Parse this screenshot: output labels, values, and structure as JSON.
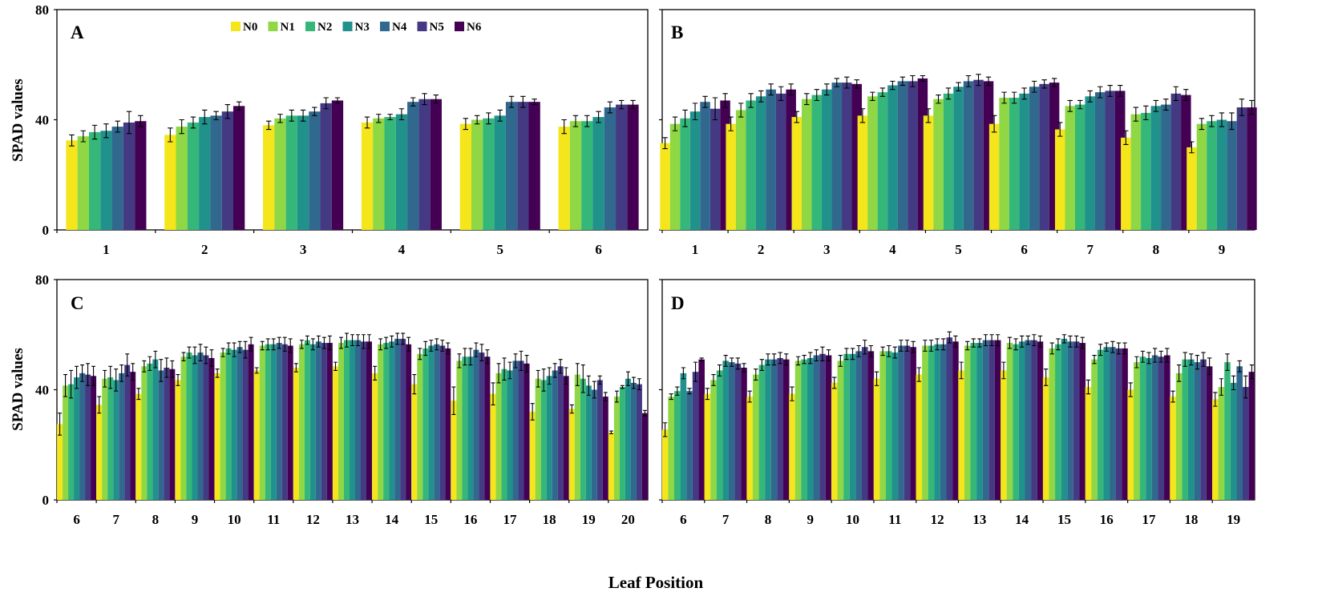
{
  "figure": {
    "ylabel": "SPAD values",
    "xlabel": "Leaf Position"
  },
  "legend": {
    "items": [
      "N0",
      "N1",
      "N2",
      "N3",
      "N4",
      "N5",
      "N6"
    ]
  },
  "colors": {
    "N0": "#f5e51b",
    "N1": "#8fd744",
    "N2": "#35b779",
    "N3": "#21918c",
    "N4": "#31688e",
    "N5": "#443983",
    "N6": "#440154"
  },
  "chart_data": [
    {
      "type": "bar",
      "panel": "A",
      "categories": [
        "1",
        "2",
        "3",
        "4",
        "5",
        "6"
      ],
      "ylim": [
        0,
        80
      ],
      "yticks": [
        0,
        40,
        80
      ],
      "series": [
        {
          "name": "N0",
          "values": [
            32.5,
            34.5,
            38,
            39,
            38.5,
            37.5
          ],
          "errors": [
            2,
            2.5,
            1.5,
            2,
            2,
            2.5
          ]
        },
        {
          "name": "N1",
          "values": [
            34,
            37.5,
            40.5,
            40.5,
            40,
            39.5
          ],
          "errors": [
            2,
            2.5,
            1.5,
            1.5,
            1.5,
            2
          ]
        },
        {
          "name": "N2",
          "values": [
            35.5,
            39,
            41.5,
            41,
            40.5,
            39.5
          ],
          "errors": [
            2.5,
            2,
            2,
            1,
            2,
            2
          ]
        },
        {
          "name": "N3",
          "values": [
            36,
            41,
            41.5,
            42,
            41.5,
            41
          ],
          "errors": [
            2.5,
            2.5,
            2,
            2,
            2,
            2
          ]
        },
        {
          "name": "N4",
          "values": [
            37.5,
            41.5,
            43,
            46.5,
            46.5,
            44.5
          ],
          "errors": [
            2,
            1.5,
            1.5,
            1.5,
            2,
            2
          ]
        },
        {
          "name": "N5",
          "values": [
            39,
            43,
            46,
            47.5,
            46.5,
            45.5
          ],
          "errors": [
            4,
            2.5,
            2,
            2,
            2,
            1.5
          ]
        },
        {
          "name": "N6",
          "values": [
            39.5,
            45,
            47,
            47.5,
            46.5,
            45.5
          ],
          "errors": [
            2,
            1.5,
            1,
            1.5,
            1,
            1.5
          ]
        }
      ]
    },
    {
      "type": "bar",
      "panel": "B",
      "categories": [
        "1",
        "2",
        "3",
        "4",
        "5",
        "6",
        "7",
        "8",
        "9"
      ],
      "ylim": [
        0,
        80
      ],
      "yticks": [
        0,
        40,
        80
      ],
      "series": [
        {
          "name": "N0",
          "values": [
            31.5,
            38.5,
            41,
            41.5,
            41.5,
            38.5,
            36.5,
            33.5,
            30
          ],
          "errors": [
            2,
            2.5,
            2,
            2.5,
            2.5,
            3,
            2.5,
            2.5,
            2
          ]
        },
        {
          "name": "N1",
          "values": [
            38.5,
            43.5,
            47.5,
            48.5,
            47.5,
            48,
            45,
            42,
            38.5
          ],
          "errors": [
            2.5,
            2.5,
            2,
            1.5,
            1.5,
            2,
            2,
            2.5,
            2
          ]
        },
        {
          "name": "N2",
          "values": [
            40.5,
            47,
            49,
            50,
            49.5,
            48,
            45.5,
            42.5,
            39.5
          ],
          "errors": [
            3,
            2.5,
            2,
            1.5,
            2,
            2,
            1.5,
            2.5,
            2
          ]
        },
        {
          "name": "N3",
          "values": [
            43,
            48.5,
            51,
            52.5,
            52,
            49.5,
            48.5,
            45,
            40
          ],
          "errors": [
            3,
            2,
            2,
            1.5,
            1.5,
            2,
            2,
            2,
            2.5
          ]
        },
        {
          "name": "N4",
          "values": [
            46.5,
            51,
            53.5,
            54,
            54,
            52,
            50,
            45.5,
            39.5
          ],
          "errors": [
            2,
            2,
            1.5,
            1.5,
            2,
            2,
            2,
            2,
            3
          ]
        },
        {
          "name": "N5",
          "values": [
            44,
            49.5,
            53.5,
            54,
            54.5,
            53,
            50.5,
            49.5,
            44.5
          ],
          "errors": [
            4,
            2.5,
            2,
            2,
            2,
            1.5,
            2,
            2.5,
            3
          ]
        },
        {
          "name": "N6",
          "values": [
            47,
            51,
            53,
            55,
            54,
            53.5,
            50.5,
            49,
            44.5
          ],
          "errors": [
            2.5,
            2,
            1.5,
            1,
            1.5,
            1.5,
            2,
            2,
            2.5
          ]
        }
      ]
    },
    {
      "type": "bar",
      "panel": "C",
      "categories": [
        "6",
        "7",
        "8",
        "9",
        "10",
        "11",
        "12",
        "13",
        "14",
        "15",
        "16",
        "17",
        "18",
        "19",
        "20"
      ],
      "ylim": [
        0,
        80
      ],
      "yticks": [
        0,
        40,
        80
      ],
      "series": [
        {
          "name": "N0",
          "values": [
            27.5,
            34.5,
            38.5,
            43.5,
            46,
            47,
            48,
            48.5,
            46,
            42,
            36,
            38.5,
            32,
            33,
            24.5
          ],
          "errors": [
            4,
            3,
            2,
            2,
            1.5,
            1,
            1.5,
            1.5,
            2.5,
            3.5,
            5,
            4,
            3,
            1.5,
            0.5
          ]
        },
        {
          "name": "N1",
          "values": [
            41.5,
            44,
            48.5,
            52,
            53.5,
            56,
            56.5,
            57,
            56.5,
            53,
            50.5,
            46,
            44,
            45.5,
            37.5
          ],
          "errors": [
            4,
            3,
            2,
            1.5,
            1.5,
            1.5,
            1.5,
            2,
            2,
            2,
            2.5,
            3.5,
            3,
            4,
            2
          ]
        },
        {
          "name": "N2",
          "values": [
            42,
            44.5,
            49.5,
            53.5,
            55,
            56.5,
            58,
            58,
            57,
            55,
            52,
            47.5,
            43.5,
            44,
            41
          ],
          "errors": [
            5,
            4,
            2.5,
            2,
            2,
            2,
            1.5,
            2.5,
            2,
            2.5,
            3,
            4,
            4,
            5,
            0.5
          ]
        },
        {
          "name": "N3",
          "values": [
            44.5,
            43.5,
            51,
            52.5,
            54.5,
            56.5,
            56.5,
            58,
            57.5,
            56,
            52,
            47,
            45,
            41.5,
            44
          ],
          "errors": [
            4,
            4,
            3,
            3,
            2.5,
            2,
            2,
            2,
            2,
            2,
            3,
            3,
            3,
            3.5,
            2.5
          ]
        },
        {
          "name": "N4",
          "values": [
            46,
            46,
            47,
            53.5,
            55.5,
            57,
            57.5,
            58,
            58.5,
            56.5,
            54.5,
            50.5,
            47,
            40,
            42.5
          ],
          "errors": [
            3,
            3,
            4,
            3,
            2,
            2,
            2,
            2,
            2,
            2,
            2.5,
            2.5,
            2.5,
            3,
            2
          ]
        },
        {
          "name": "N5",
          "values": [
            45.5,
            49,
            48,
            52.5,
            54.5,
            56.5,
            57,
            57.5,
            58.5,
            56,
            53.5,
            50.5,
            48.5,
            43.5,
            42
          ],
          "errors": [
            4,
            4,
            3.5,
            3,
            3,
            2.5,
            2,
            2.5,
            2,
            2,
            3,
            3.5,
            2.5,
            1.5,
            2
          ]
        },
        {
          "name": "N6",
          "values": [
            45,
            46.5,
            47.5,
            51.5,
            56.5,
            56,
            57,
            57.5,
            56.5,
            55,
            52,
            49.5,
            45,
            37.5,
            31.5
          ],
          "errors": [
            3.5,
            3,
            3,
            3,
            2.5,
            2.5,
            2.5,
            2.5,
            2.5,
            2,
            2.5,
            3,
            3,
            1.5,
            1
          ]
        }
      ]
    },
    {
      "type": "bar",
      "panel": "D",
      "categories": [
        "6",
        "7",
        "8",
        "9",
        "10",
        "11",
        "12",
        "13",
        "14",
        "15",
        "16",
        "17",
        "18",
        "19"
      ],
      "ylim": [
        0,
        80
      ],
      "yticks": [
        0,
        40,
        80
      ],
      "series": [
        {
          "name": "N0",
          "values": [
            25.5,
            38.5,
            37.5,
            38.5,
            42.5,
            44,
            45.5,
            47,
            47,
            44.5,
            41,
            40,
            37.5,
            36.5
          ],
          "errors": [
            2.5,
            2,
            2,
            2.5,
            2,
            2.5,
            2.5,
            3,
            3,
            3,
            2.5,
            2.5,
            2,
            2.5
          ]
        },
        {
          "name": "N1",
          "values": [
            37.5,
            43.5,
            45.5,
            50.5,
            50.5,
            54,
            56,
            56,
            57,
            55,
            51,
            50,
            46,
            41
          ],
          "errors": [
            1,
            2,
            2,
            1.5,
            2,
            1.5,
            2,
            1.5,
            2,
            2,
            1.5,
            2,
            3,
            3
          ]
        },
        {
          "name": "N2",
          "values": [
            39.5,
            47,
            49,
            51,
            53,
            54,
            56,
            57,
            56.5,
            56.5,
            54.5,
            52,
            51,
            50
          ],
          "errors": [
            1.5,
            2,
            2,
            1.5,
            2,
            2,
            2,
            1.5,
            2,
            2,
            2,
            2,
            2.5,
            3
          ]
        },
        {
          "name": "N3",
          "values": [
            46,
            50.5,
            51,
            51.5,
            53,
            53.5,
            56.5,
            57,
            57.5,
            58.5,
            55.5,
            51.5,
            51,
            42.5
          ],
          "errors": [
            2,
            2,
            2,
            2,
            2,
            2,
            2,
            1.5,
            2,
            1.5,
            1.5,
            2,
            2,
            2.5
          ]
        },
        {
          "name": "N4",
          "values": [
            39.5,
            50,
            51,
            52.5,
            54,
            56,
            56.5,
            58,
            58,
            57.5,
            55.5,
            52.5,
            50,
            48.5
          ],
          "errors": [
            1,
            1.5,
            2,
            2,
            2,
            2,
            2,
            2,
            1.5,
            2,
            2,
            2.5,
            2.5,
            2
          ]
        },
        {
          "name": "N5",
          "values": [
            46.5,
            49.5,
            51.5,
            53,
            55.5,
            56,
            59,
            58,
            58,
            57.5,
            55,
            52,
            51,
            41
          ],
          "errors": [
            3.5,
            2,
            2,
            2.5,
            2.5,
            2,
            2,
            2,
            2,
            2,
            2,
            2,
            2.5,
            4
          ]
        },
        {
          "name": "N6",
          "values": [
            51,
            48,
            51,
            52.5,
            54,
            55.5,
            57.5,
            58,
            57.5,
            57,
            55,
            52.5,
            48.5,
            46.5
          ],
          "errors": [
            0.5,
            1.5,
            2,
            2,
            2,
            2,
            2,
            2,
            2,
            2,
            2,
            2.5,
            3,
            2.5
          ]
        }
      ]
    }
  ]
}
